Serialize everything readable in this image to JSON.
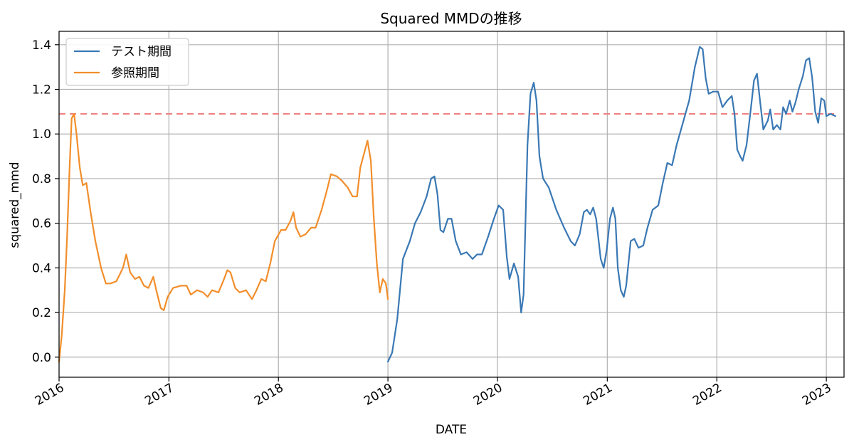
{
  "chart_data": {
    "type": "line",
    "title": "Squared MMDの推移",
    "xlabel": "DATE",
    "ylabel": "squared_mmd",
    "x_type": "date",
    "xlim": [
      "2016-01-01",
      "2023-03-01"
    ],
    "ylim": [
      -0.09,
      1.46
    ],
    "x_ticks": [
      "2016-01-01",
      "2017-01-01",
      "2018-01-01",
      "2019-01-01",
      "2020-01-01",
      "2021-01-01",
      "2022-01-01",
      "2023-01-01"
    ],
    "x_tick_labels": [
      "2016",
      "2017",
      "2018",
      "2019",
      "2020",
      "2021",
      "2022",
      "2023"
    ],
    "y_ticks": [
      0.0,
      0.2,
      0.4,
      0.6,
      0.8,
      1.0,
      1.2,
      1.4
    ],
    "y_tick_labels": [
      "0.0",
      "0.2",
      "0.4",
      "0.6",
      "0.8",
      "1.0",
      "1.2",
      "1.4"
    ],
    "grid": true,
    "legend_position": "top-left",
    "threshold": {
      "value": 1.09,
      "x_start": "2016-01-01",
      "x_end": "2023-01-31",
      "color": "#f08080",
      "style": "dashed"
    },
    "series": [
      {
        "name": "テスト期間",
        "color": "#3a78b4",
        "points": [
          [
            "2019-01-01",
            -0.02
          ],
          [
            "2019-01-15",
            0.02
          ],
          [
            "2019-02-01",
            0.17
          ],
          [
            "2019-02-20",
            0.44
          ],
          [
            "2019-03-15",
            0.52
          ],
          [
            "2019-04-01",
            0.6
          ],
          [
            "2019-04-20",
            0.65
          ],
          [
            "2019-05-10",
            0.72
          ],
          [
            "2019-05-25",
            0.8
          ],
          [
            "2019-06-05",
            0.81
          ],
          [
            "2019-06-15",
            0.73
          ],
          [
            "2019-06-25",
            0.57
          ],
          [
            "2019-07-05",
            0.56
          ],
          [
            "2019-07-20",
            0.62
          ],
          [
            "2019-08-01",
            0.62
          ],
          [
            "2019-08-15",
            0.52
          ],
          [
            "2019-09-01",
            0.46
          ],
          [
            "2019-09-20",
            0.47
          ],
          [
            "2019-10-10",
            0.44
          ],
          [
            "2019-10-25",
            0.46
          ],
          [
            "2019-11-10",
            0.46
          ],
          [
            "2019-12-01",
            0.54
          ],
          [
            "2019-12-20",
            0.62
          ],
          [
            "2020-01-05",
            0.68
          ],
          [
            "2020-01-20",
            0.66
          ],
          [
            "2020-02-01",
            0.45
          ],
          [
            "2020-02-10",
            0.35
          ],
          [
            "2020-02-25",
            0.42
          ],
          [
            "2020-03-10",
            0.36
          ],
          [
            "2020-03-20",
            0.2
          ],
          [
            "2020-03-28",
            0.28
          ],
          [
            "2020-04-10",
            0.95
          ],
          [
            "2020-04-20",
            1.18
          ],
          [
            "2020-05-01",
            1.23
          ],
          [
            "2020-05-10",
            1.15
          ],
          [
            "2020-05-20",
            0.9
          ],
          [
            "2020-06-01",
            0.8
          ],
          [
            "2020-06-20",
            0.76
          ],
          [
            "2020-07-15",
            0.66
          ],
          [
            "2020-08-10",
            0.58
          ],
          [
            "2020-09-01",
            0.52
          ],
          [
            "2020-09-15",
            0.5
          ],
          [
            "2020-10-01",
            0.55
          ],
          [
            "2020-10-15",
            0.65
          ],
          [
            "2020-10-25",
            0.66
          ],
          [
            "2020-11-05",
            0.64
          ],
          [
            "2020-11-15",
            0.67
          ],
          [
            "2020-11-25",
            0.62
          ],
          [
            "2020-12-10",
            0.44
          ],
          [
            "2020-12-20",
            0.4
          ],
          [
            "2020-12-30",
            0.48
          ],
          [
            "2021-01-10",
            0.62
          ],
          [
            "2021-01-20",
            0.67
          ],
          [
            "2021-01-28",
            0.62
          ],
          [
            "2021-02-05",
            0.4
          ],
          [
            "2021-02-15",
            0.3
          ],
          [
            "2021-02-25",
            0.27
          ],
          [
            "2021-03-05",
            0.32
          ],
          [
            "2021-03-20",
            0.52
          ],
          [
            "2021-04-01",
            0.53
          ],
          [
            "2021-04-15",
            0.49
          ],
          [
            "2021-05-01",
            0.5
          ],
          [
            "2021-05-15",
            0.58
          ],
          [
            "2021-06-01",
            0.66
          ],
          [
            "2021-06-20",
            0.68
          ],
          [
            "2021-07-05",
            0.78
          ],
          [
            "2021-07-20",
            0.87
          ],
          [
            "2021-08-05",
            0.86
          ],
          [
            "2021-08-20",
            0.95
          ],
          [
            "2021-09-10",
            1.05
          ],
          [
            "2021-10-01",
            1.15
          ],
          [
            "2021-10-20",
            1.3
          ],
          [
            "2021-11-05",
            1.39
          ],
          [
            "2021-11-15",
            1.38
          ],
          [
            "2021-11-25",
            1.25
          ],
          [
            "2021-12-05",
            1.18
          ],
          [
            "2021-12-20",
            1.19
          ],
          [
            "2022-01-05",
            1.19
          ],
          [
            "2022-01-20",
            1.12
          ],
          [
            "2022-02-05",
            1.15
          ],
          [
            "2022-02-20",
            1.17
          ],
          [
            "2022-03-01",
            1.09
          ],
          [
            "2022-03-10",
            0.93
          ],
          [
            "2022-03-20",
            0.9
          ],
          [
            "2022-03-28",
            0.88
          ],
          [
            "2022-04-10",
            0.95
          ],
          [
            "2022-04-25",
            1.12
          ],
          [
            "2022-05-05",
            1.24
          ],
          [
            "2022-05-15",
            1.27
          ],
          [
            "2022-05-25",
            1.15
          ],
          [
            "2022-06-05",
            1.02
          ],
          [
            "2022-06-20",
            1.06
          ],
          [
            "2022-06-28",
            1.11
          ],
          [
            "2022-07-08",
            1.02
          ],
          [
            "2022-07-20",
            1.04
          ],
          [
            "2022-08-01",
            1.02
          ],
          [
            "2022-08-10",
            1.12
          ],
          [
            "2022-08-20",
            1.09
          ],
          [
            "2022-09-01",
            1.15
          ],
          [
            "2022-09-10",
            1.1
          ],
          [
            "2022-09-20",
            1.14
          ],
          [
            "2022-10-01",
            1.2
          ],
          [
            "2022-10-15",
            1.26
          ],
          [
            "2022-10-25",
            1.33
          ],
          [
            "2022-11-05",
            1.34
          ],
          [
            "2022-11-15",
            1.25
          ],
          [
            "2022-11-25",
            1.1
          ],
          [
            "2022-12-05",
            1.05
          ],
          [
            "2022-12-15",
            1.16
          ],
          [
            "2022-12-25",
            1.15
          ],
          [
            "2023-01-01",
            1.08
          ],
          [
            "2023-01-15",
            1.09
          ],
          [
            "2023-01-31",
            1.08
          ]
        ]
      },
      {
        "name": "参照期間",
        "color": "#f28e2b",
        "points": [
          [
            "2016-01-01",
            -0.02
          ],
          [
            "2016-01-10",
            0.1
          ],
          [
            "2016-01-20",
            0.3
          ],
          [
            "2016-01-28",
            0.55
          ],
          [
            "2016-02-05",
            0.85
          ],
          [
            "2016-02-12",
            1.07
          ],
          [
            "2016-02-20",
            1.09
          ],
          [
            "2016-02-28",
            1.0
          ],
          [
            "2016-03-10",
            0.85
          ],
          [
            "2016-03-20",
            0.77
          ],
          [
            "2016-04-01",
            0.78
          ],
          [
            "2016-04-15",
            0.65
          ],
          [
            "2016-05-01",
            0.52
          ],
          [
            "2016-05-20",
            0.4
          ],
          [
            "2016-06-05",
            0.33
          ],
          [
            "2016-06-20",
            0.33
          ],
          [
            "2016-07-10",
            0.34
          ],
          [
            "2016-08-01",
            0.4
          ],
          [
            "2016-08-12",
            0.46
          ],
          [
            "2016-08-25",
            0.38
          ],
          [
            "2016-09-10",
            0.35
          ],
          [
            "2016-09-25",
            0.36
          ],
          [
            "2016-10-10",
            0.32
          ],
          [
            "2016-10-25",
            0.31
          ],
          [
            "2016-11-10",
            0.36
          ],
          [
            "2016-11-20",
            0.3
          ],
          [
            "2016-12-05",
            0.22
          ],
          [
            "2016-12-15",
            0.21
          ],
          [
            "2016-12-28",
            0.27
          ],
          [
            "2017-01-15",
            0.31
          ],
          [
            "2017-02-10",
            0.32
          ],
          [
            "2017-03-01",
            0.32
          ],
          [
            "2017-03-15",
            0.28
          ],
          [
            "2017-04-05",
            0.3
          ],
          [
            "2017-04-25",
            0.29
          ],
          [
            "2017-05-10",
            0.27
          ],
          [
            "2017-05-25",
            0.3
          ],
          [
            "2017-06-15",
            0.29
          ],
          [
            "2017-07-01",
            0.34
          ],
          [
            "2017-07-15",
            0.39
          ],
          [
            "2017-07-25",
            0.38
          ],
          [
            "2017-08-10",
            0.31
          ],
          [
            "2017-08-25",
            0.29
          ],
          [
            "2017-09-15",
            0.3
          ],
          [
            "2017-10-05",
            0.26
          ],
          [
            "2017-10-20",
            0.3
          ],
          [
            "2017-11-05",
            0.35
          ],
          [
            "2017-11-20",
            0.34
          ],
          [
            "2017-12-05",
            0.42
          ],
          [
            "2017-12-20",
            0.52
          ],
          [
            "2018-01-10",
            0.57
          ],
          [
            "2018-01-25",
            0.57
          ],
          [
            "2018-02-10",
            0.61
          ],
          [
            "2018-02-20",
            0.65
          ],
          [
            "2018-03-01",
            0.58
          ],
          [
            "2018-03-15",
            0.54
          ],
          [
            "2018-04-01",
            0.55
          ],
          [
            "2018-04-20",
            0.58
          ],
          [
            "2018-05-05",
            0.58
          ],
          [
            "2018-05-25",
            0.66
          ],
          [
            "2018-06-10",
            0.74
          ],
          [
            "2018-06-25",
            0.82
          ],
          [
            "2018-07-15",
            0.81
          ],
          [
            "2018-08-01",
            0.79
          ],
          [
            "2018-08-20",
            0.76
          ],
          [
            "2018-09-05",
            0.72
          ],
          [
            "2018-09-20",
            0.72
          ],
          [
            "2018-10-01",
            0.85
          ],
          [
            "2018-10-15",
            0.92
          ],
          [
            "2018-10-25",
            0.97
          ],
          [
            "2018-11-05",
            0.88
          ],
          [
            "2018-11-15",
            0.62
          ],
          [
            "2018-11-25",
            0.42
          ],
          [
            "2018-12-05",
            0.29
          ],
          [
            "2018-12-15",
            0.35
          ],
          [
            "2018-12-25",
            0.33
          ],
          [
            "2019-01-01",
            0.26
          ]
        ]
      }
    ]
  }
}
